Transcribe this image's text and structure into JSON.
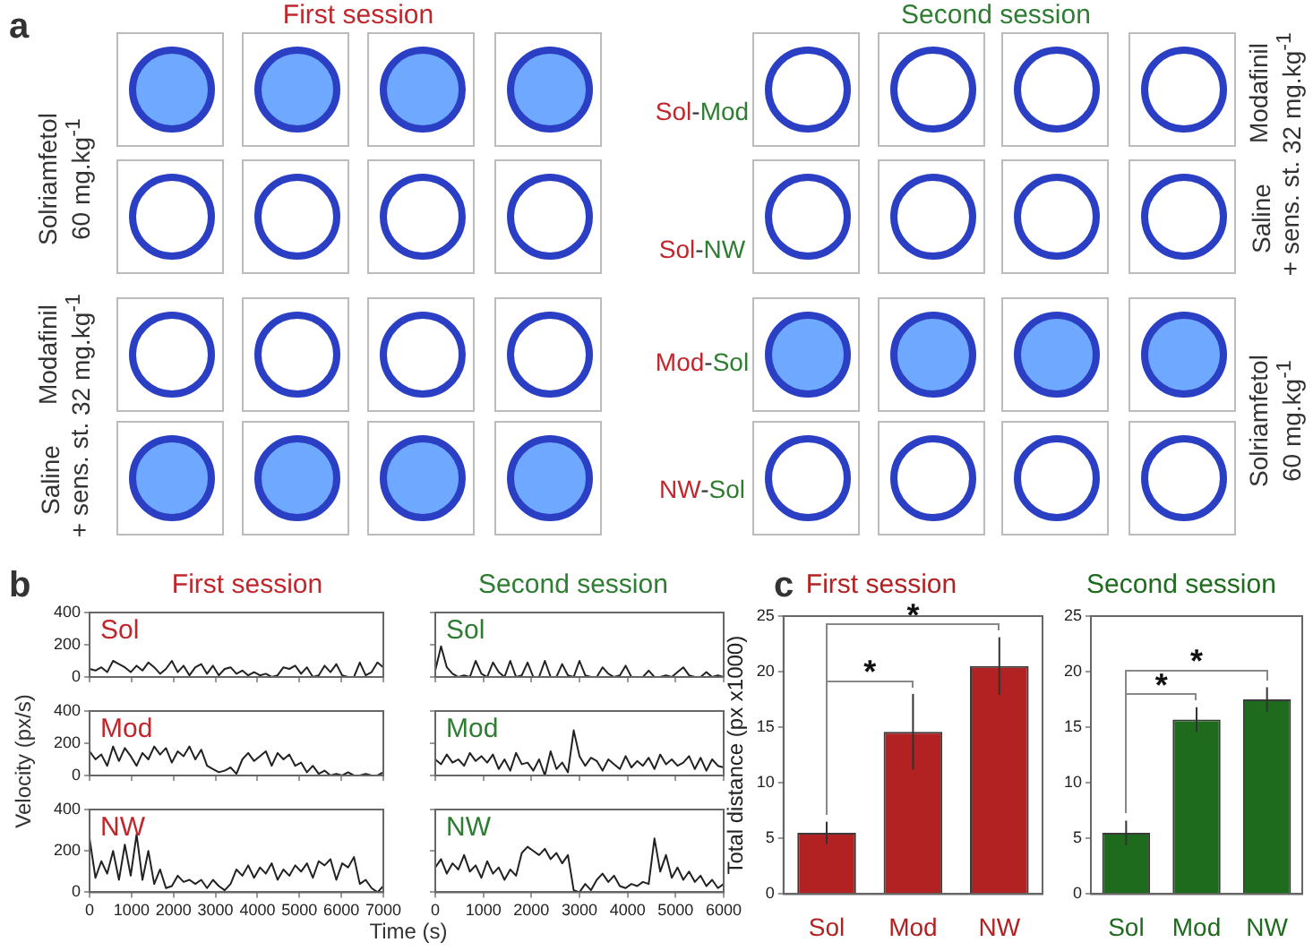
{
  "chart_data": [
    {
      "type": "other",
      "annotations": [
        "a",
        "First session",
        "Second session",
        "Sol-Mod",
        "Sol-NW",
        "Mod-Sol",
        "NW-Sol",
        "Solriamfetol\n60 mg.kg$^{-1}$",
        "Modafinil\n32 mg.kg$^{-1}$",
        "Saline\n+ sens. st.",
        "Modafinil\n32 mg.kg$^{-1}$",
        "Saline\n+ sens. st.",
        "Solriamfetol\n60 mg.kg$^{-1}$"
      ]
    },
    {
      "type": "other",
      "annotations": [
        "b",
        "First session",
        "Second session",
        "c",
        "Velocity (px/s)",
        "Time (s)"
      ]
    },
    {
      "type": "line",
      "title": "Sol",
      "x": [
        0,
        140,
        280,
        420,
        560,
        700,
        840,
        980,
        1120,
        1260,
        1400,
        1540,
        1680,
        1820,
        1960,
        2100,
        2240,
        2380,
        2520,
        2660,
        2800,
        2940,
        3080,
        3220,
        3360,
        3500,
        3640,
        3780,
        3920,
        4060,
        4200,
        4340,
        4480,
        4620,
        4760,
        4900,
        5040,
        5180,
        5320,
        5460,
        5600,
        5740,
        5880,
        6020,
        6160,
        6300,
        6440,
        6580,
        6720,
        6860,
        7000
      ],
      "xlim": [
        0,
        7000
      ],
      "xticks": [
        0,
        1000,
        2000,
        3000,
        4000,
        5000,
        6000,
        7000
      ],
      "ylim": [
        0,
        400
      ],
      "yticks": [
        0,
        200,
        400
      ],
      "tick_labels": "y",
      "series": [
        {
          "color": "#222222",
          "values": [
            50,
            40,
            60,
            30,
            100,
            80,
            60,
            30,
            70,
            40,
            90,
            60,
            20,
            50,
            100,
            30,
            70,
            10,
            60,
            80,
            20,
            70,
            10,
            50,
            60,
            20,
            40,
            10,
            30,
            10,
            20,
            0,
            10,
            60,
            50,
            70,
            20,
            60,
            0,
            10,
            70,
            30,
            80,
            10,
            0,
            0,
            90,
            10,
            30,
            90,
            60
          ]
        }
      ]
    },
    {
      "type": "line",
      "title": "Sol",
      "x": [
        0,
        120,
        240,
        360,
        480,
        600,
        720,
        840,
        960,
        1080,
        1200,
        1320,
        1440,
        1560,
        1680,
        1800,
        1920,
        2040,
        2160,
        2280,
        2400,
        2520,
        2640,
        2760,
        2880,
        3000,
        3120,
        3240,
        3360,
        3480,
        3600,
        3720,
        3840,
        3960,
        4080,
        4200,
        4320,
        4440,
        4560,
        4680,
        4800,
        4920,
        5040,
        5160,
        5280,
        5400,
        5520,
        5640,
        5760,
        5880,
        6000
      ],
      "xlim": [
        0,
        6000
      ],
      "xticks": [
        0,
        1000,
        2000,
        3000,
        4000,
        5000,
        6000
      ],
      "ylim": [
        0,
        400
      ],
      "yticks": [
        0,
        200,
        400
      ],
      "tick_labels": false,
      "series": [
        {
          "color": "#222222",
          "values": [
            40,
            190,
            60,
            20,
            0,
            10,
            0,
            100,
            20,
            0,
            90,
            30,
            0,
            100,
            0,
            10,
            90,
            0,
            0,
            100,
            0,
            0,
            80,
            10,
            0,
            100,
            10,
            0,
            0,
            60,
            20,
            0,
            10,
            70,
            0,
            0,
            0,
            40,
            0,
            0,
            10,
            0,
            30,
            60,
            10,
            0,
            0,
            30,
            0,
            10,
            0
          ]
        }
      ]
    },
    {
      "type": "line",
      "title": "Mod",
      "x": [
        0,
        140,
        280,
        420,
        560,
        700,
        840,
        980,
        1120,
        1260,
        1400,
        1540,
        1680,
        1820,
        1960,
        2100,
        2240,
        2380,
        2520,
        2660,
        2800,
        2940,
        3080,
        3220,
        3360,
        3500,
        3640,
        3780,
        3920,
        4060,
        4200,
        4340,
        4480,
        4620,
        4760,
        4900,
        5040,
        5180,
        5320,
        5460,
        5600,
        5740,
        5880,
        6020,
        6160,
        6300,
        6440,
        6580,
        6720,
        6860,
        7000
      ],
      "xlim": [
        0,
        7000
      ],
      "xticks": [
        0,
        1000,
        2000,
        3000,
        4000,
        5000,
        6000,
        7000
      ],
      "ylim": [
        0,
        400
      ],
      "yticks": [
        0,
        200,
        400
      ],
      "tick_labels": "y",
      "series": [
        {
          "color": "#222222",
          "values": [
            150,
            100,
            130,
            60,
            180,
            90,
            170,
            120,
            60,
            140,
            100,
            180,
            130,
            170,
            80,
            150,
            120,
            180,
            100,
            160,
            60,
            40,
            20,
            30,
            50,
            10,
            100,
            140,
            90,
            120,
            150,
            60,
            140,
            100,
            130,
            60,
            80,
            20,
            60,
            10,
            30,
            0,
            10,
            0,
            20,
            0,
            0,
            10,
            0,
            0,
            20
          ]
        }
      ]
    },
    {
      "type": "line",
      "title": "Mod",
      "x": [
        0,
        120,
        240,
        360,
        480,
        600,
        720,
        840,
        960,
        1080,
        1200,
        1320,
        1440,
        1560,
        1680,
        1800,
        1920,
        2040,
        2160,
        2280,
        2400,
        2520,
        2640,
        2760,
        2880,
        3000,
        3120,
        3240,
        3360,
        3480,
        3600,
        3720,
        3840,
        3960,
        4080,
        4200,
        4320,
        4440,
        4560,
        4680,
        4800,
        4920,
        5040,
        5160,
        5280,
        5400,
        5520,
        5640,
        5760,
        5880,
        6000
      ],
      "xlim": [
        0,
        6000
      ],
      "xticks": [
        0,
        1000,
        2000,
        3000,
        4000,
        5000,
        6000
      ],
      "ylim": [
        0,
        400
      ],
      "yticks": [
        0,
        200,
        400
      ],
      "tick_labels": false,
      "series": [
        {
          "color": "#222222",
          "values": [
            100,
            70,
            130,
            80,
            100,
            60,
            140,
            90,
            120,
            80,
            130,
            40,
            100,
            30,
            140,
            70,
            80,
            30,
            100,
            0,
            150,
            40,
            80,
            20,
            280,
            120,
            60,
            110,
            90,
            30,
            100,
            70,
            40,
            120,
            50,
            90,
            60,
            110,
            40,
            130,
            70,
            100,
            60,
            80,
            120,
            40,
            110,
            30,
            100,
            60,
            50
          ]
        }
      ]
    },
    {
      "type": "line",
      "title": "NW",
      "x": [
        0,
        140,
        280,
        420,
        560,
        700,
        840,
        980,
        1120,
        1260,
        1400,
        1540,
        1680,
        1820,
        1960,
        2100,
        2240,
        2380,
        2520,
        2660,
        2800,
        2940,
        3080,
        3220,
        3360,
        3500,
        3640,
        3780,
        3920,
        4060,
        4200,
        4340,
        4480,
        4620,
        4760,
        4900,
        5040,
        5180,
        5320,
        5460,
        5600,
        5740,
        5880,
        6020,
        6160,
        6300,
        6440,
        6580,
        6720,
        6860,
        7000
      ],
      "xlim": [
        0,
        7000
      ],
      "xticks": [
        0,
        1000,
        2000,
        3000,
        4000,
        5000,
        6000,
        7000
      ],
      "ylim": [
        0,
        400
      ],
      "yticks": [
        0,
        200,
        400
      ],
      "series": [
        {
          "color": "#222222",
          "values": [
            260,
            70,
            150,
            90,
            200,
            60,
            230,
            80,
            280,
            60,
            200,
            40,
            110,
            20,
            30,
            80,
            50,
            60,
            40,
            60,
            20,
            60,
            30,
            10,
            40,
            110,
            80,
            130,
            70,
            120,
            90,
            140,
            60,
            110,
            80,
            130,
            100,
            140,
            70,
            150,
            130,
            160,
            60,
            140,
            120,
            170,
            40,
            60,
            20,
            0,
            30
          ]
        }
      ]
    },
    {
      "type": "line",
      "title": "NW",
      "x": [
        0,
        120,
        240,
        360,
        480,
        600,
        720,
        840,
        960,
        1080,
        1200,
        1320,
        1440,
        1560,
        1680,
        1800,
        1920,
        2040,
        2160,
        2280,
        2400,
        2520,
        2640,
        2760,
        2880,
        3000,
        3120,
        3240,
        3360,
        3480,
        3600,
        3720,
        3840,
        3960,
        4080,
        4200,
        4320,
        4440,
        4560,
        4680,
        4800,
        4920,
        5040,
        5160,
        5280,
        5400,
        5520,
        5640,
        5760,
        5880,
        6000
      ],
      "xlim": [
        0,
        6000
      ],
      "xticks": [
        0,
        1000,
        2000,
        3000,
        4000,
        5000,
        6000
      ],
      "ylim": [
        0,
        400
      ],
      "yticks": [
        0,
        200,
        400
      ],
      "tick_labels": "x",
      "series": [
        {
          "color": "#222222",
          "values": [
            120,
            160,
            90,
            140,
            110,
            180,
            100,
            130,
            70,
            150,
            90,
            120,
            60,
            110,
            80,
            190,
            220,
            200,
            180,
            210,
            160,
            190,
            140,
            180,
            10,
            0,
            40,
            10,
            60,
            90,
            50,
            80,
            30,
            20,
            40,
            30,
            50,
            40,
            260,
            100,
            180,
            70,
            120,
            60,
            100,
            50,
            80,
            30,
            60,
            20,
            40
          ]
        }
      ]
    },
    {
      "type": "bar",
      "title": "First session",
      "ylabel": "Total distance (px x1000)",
      "categories": [
        "Sol",
        "Mod",
        "NW"
      ],
      "ylim": [
        0,
        25
      ],
      "yticks": [
        0,
        5,
        10,
        15,
        20,
        25
      ],
      "annotations": [
        "*",
        "*"
      ],
      "series": [
        {
          "color": "#b22222",
          "values": [
            5.5,
            14.6,
            20.5
          ],
          "errors": [
            1.0,
            3.4,
            2.6
          ]
        }
      ]
    },
    {
      "type": "bar",
      "title": "Second session",
      "categories": [
        "Sol",
        "Mod",
        "NW"
      ],
      "ylim": [
        0,
        25
      ],
      "yticks": [
        0,
        5,
        10,
        15,
        20,
        25
      ],
      "annotations": [
        "*",
        "*"
      ],
      "series": [
        {
          "color": "#1e6b1e",
          "values": [
            5.5,
            15.7,
            17.5
          ],
          "errors": [
            1.1,
            1.1,
            1.1
          ]
        }
      ]
    }
  ]
}
